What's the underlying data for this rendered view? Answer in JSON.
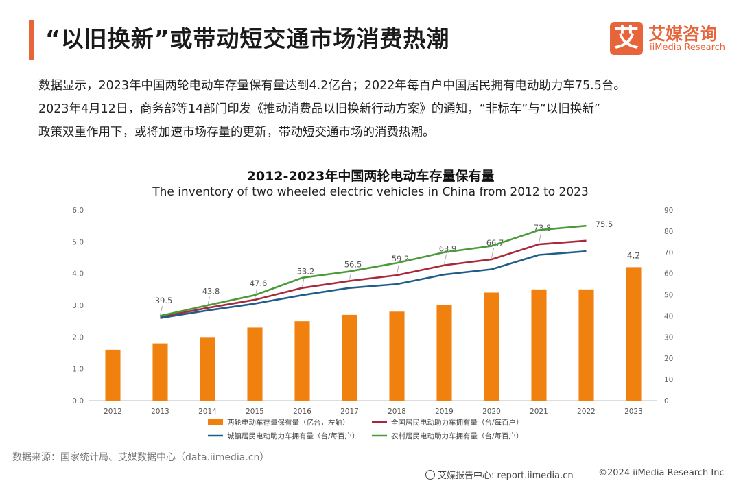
{
  "header": {
    "title": "“以旧换新”或带动短交通市场消费热潮",
    "logo_mark": "艾",
    "logo_cn": "艾媒咨询",
    "logo_en": "iiMedia Research"
  },
  "intro": {
    "line1": "数据显示，2023年中国两轮电动车存量保有量达到4.2亿台；2022年每百户中国居民拥有电动助力车75.5台。",
    "line2": "2023年4月12日，商务部等14部门印发《推动消费品以旧换新行动方案》的通知，“非标车”与“以旧换新”",
    "line3": "政策双重作用下，或将加速市场存量的更新，带动短交通市场的消费热潮。"
  },
  "chart_data": {
    "type": "bar",
    "title": "2012-2023年中国两轮电动车存量保有量",
    "subtitle": "The inventory of two wheeled electric vehicles in China from 2012 to 2023",
    "categories": [
      "2012",
      "2013",
      "2014",
      "2015",
      "2016",
      "2017",
      "2018",
      "2019",
      "2020",
      "2021",
      "2022",
      "2023"
    ],
    "left_axis": {
      "min": 0,
      "max": 6,
      "ticks": [
        "0.0",
        "1.0",
        "2.0",
        "3.0",
        "4.0",
        "5.0",
        "6.0"
      ]
    },
    "right_axis": {
      "min": 0,
      "max": 90,
      "ticks": [
        "0",
        "10",
        "20",
        "30",
        "40",
        "50",
        "60",
        "70",
        "80",
        "90"
      ]
    },
    "bars": {
      "name": "两轮电动车存量保有量（亿台，左轴）",
      "color": "#f0810f",
      "values": [
        1.6,
        1.8,
        2.0,
        2.3,
        2.5,
        2.7,
        2.8,
        3.0,
        3.4,
        3.5,
        3.5,
        4.2
      ],
      "labels": [
        null,
        null,
        null,
        null,
        null,
        null,
        null,
        null,
        null,
        null,
        null,
        "4.2"
      ]
    },
    "lines": [
      {
        "name": "全国居民电动助力车拥有量（台/每百户）",
        "color": "#a8283c",
        "values": [
          null,
          39.5,
          43.8,
          47.6,
          53.2,
          56.5,
          59.2,
          63.9,
          66.7,
          73.8,
          75.5,
          null
        ],
        "labels": [
          null,
          "39.5",
          "43.8",
          "47.6",
          "53.2",
          "56.5",
          "59.2",
          "63.9",
          "66.7",
          "73.8",
          "75.5",
          null
        ]
      },
      {
        "name": "城镇居民电动助力车拥有量（台/每百户）",
        "color": "#1f5d8c",
        "values": [
          null,
          39.0,
          42.6,
          45.8,
          49.8,
          53.2,
          55.0,
          59.5,
          62.0,
          68.8,
          70.5,
          null
        ]
      },
      {
        "name": "农村居民电动助力车拥有量（台/每百户）",
        "color": "#4a9a3a",
        "values": [
          null,
          40.0,
          45.0,
          49.8,
          58.0,
          61.0,
          65.0,
          70.0,
          73.0,
          80.5,
          82.5,
          null
        ]
      }
    ]
  },
  "footer": {
    "source": "数据来源：国家统计局、艾媒数据中心（data.iimedia.cn）",
    "site": "艾媒报告中心: report.iimedia.cn",
    "copyright": "©2024  iiMedia Research  Inc"
  }
}
